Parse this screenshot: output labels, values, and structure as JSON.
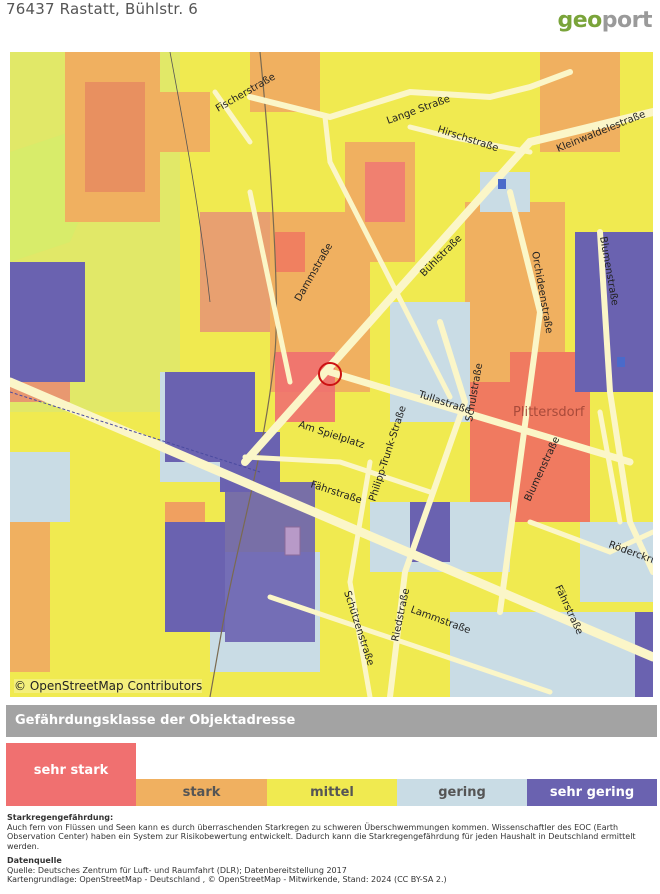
{
  "header": {
    "address": "76437 Rastatt, Bühlstr. 6",
    "logo_part1": "geo",
    "logo_part2": "port"
  },
  "map": {
    "credit": "© OpenStreetMap Contributors",
    "place_label": "Plittersdorf",
    "street_labels": {
      "fischerstrasse": "Fischerstraße",
      "lange_strasse": "Lange Straße",
      "hirschstrasse": "Hirschstraße",
      "kleinwaldelestrasse": "Kleinwaldelestraße",
      "blumenstrasse_top": "Blumenstraße",
      "buehlstrasse": "Bühlstraße",
      "dammstrasse": "Dammstraße",
      "orchideenstrasse": "Orchideenstraße",
      "schulstrasse": "Schulstraße",
      "tullastrasse": "Tullastraße",
      "am_spielplatz": "Am Spielplatz",
      "philipp_trunk_strasse": "Philipp-Trunk-Straße",
      "fahrstrasse": "Fährstraße",
      "blumenstrasse_bottom": "Blumenstraße",
      "roederckring": "Röderckring",
      "schutzenstrasse": "Schützenstraße",
      "riedstrasse": "Riedstraße",
      "lammstrasse": "Lammstraße",
      "fahrstrasse_2": "Fährstraße"
    },
    "colors": {
      "sehr_stark": "#f07070",
      "stark": "#f0b060",
      "mittel": "#f0ea50",
      "gering": "#c9dce5",
      "sehr_gering": "#6a62b0"
    }
  },
  "legend": {
    "title": "Gefährdungsklasse der Objektadresse",
    "active_class": "sehr stark",
    "classes": [
      {
        "label": "sehr stark",
        "color": "#f07070"
      },
      {
        "label": "stark",
        "color": "#f0b060"
      },
      {
        "label": "mittel",
        "color": "#f0ea50"
      },
      {
        "label": "gering",
        "color": "#c9dce5"
      },
      {
        "label": "sehr gering",
        "color": "#6a62b0"
      }
    ]
  },
  "footer": {
    "heading1": "Starkregengefährdung:",
    "text1": "Auch fern von Flüssen und Seen kann es durch überraschenden Starkregen zu schweren Überschwemmungen kommen. Wissenschaftler des EOC (Earth Observation Center) haben ein System zur Risikobewertung entwickelt. Dadurch kann die Starkregengefährdung für jeden Haushalt in Deutschland ermittelt werden.",
    "heading2": "Datenquelle",
    "source": "Quelle: Deutsches Zentrum für Luft- und Raumfahrt (DLR); Datenbereitstellung 2017",
    "basemap": "Kartengrundlage: OpenStreetMap - Deutschland , © OpenStreetMap - Mitwirkende, Stand: 2024 (CC BY-SA 2.)"
  }
}
